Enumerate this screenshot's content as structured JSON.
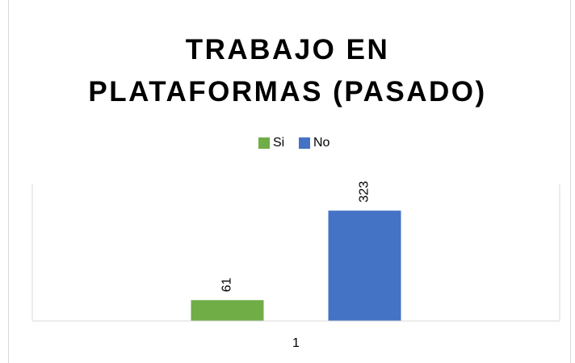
{
  "chart_data": {
    "type": "bar",
    "title": "TRABAJO EN\nPLATAFORMAS (PASADO)",
    "categories": [
      "1"
    ],
    "series": [
      {
        "name": "Si",
        "color": "#70ad47",
        "values": [
          61
        ]
      },
      {
        "name": "No",
        "color": "#4472c4",
        "values": [
          323
        ]
      }
    ],
    "ylim": [
      0,
      400
    ],
    "legend": "top",
    "grid": false
  }
}
